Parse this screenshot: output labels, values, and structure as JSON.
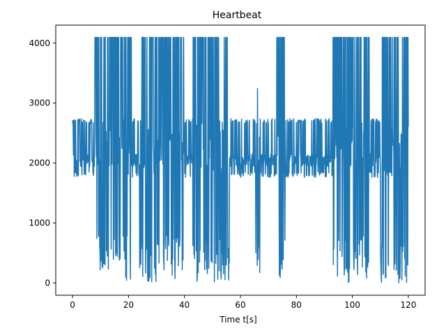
{
  "chart_data": {
    "type": "line",
    "title": "Heartbeat",
    "xlabel": "Time t[s]",
    "ylabel": "",
    "xlim": [
      -6,
      126
    ],
    "ylim": [
      -205,
      4300
    ],
    "x_ticks": [
      0,
      20,
      40,
      60,
      80,
      100,
      120
    ],
    "y_ticks": [
      0,
      1000,
      2000,
      3000,
      4000
    ],
    "grid": false,
    "legend": "none",
    "series": [
      {
        "color": "#1f77b4",
        "x_range": [
          0,
          120
        ],
        "sample_rate_hz": 10,
        "baseline": 2050,
        "normal_band": [
          1760,
          2740
        ],
        "saturation_range": [
          0,
          4095
        ],
        "saturation_segments": [
          [
            8,
            21
          ],
          [
            24,
            40
          ],
          [
            43,
            56
          ],
          [
            73,
            76
          ],
          [
            93,
            106
          ],
          [
            110,
            120
          ]
        ],
        "dropout_only_segments": [
          [
            65.5,
            67
          ],
          [
            46,
            53
          ]
        ]
      }
    ]
  }
}
